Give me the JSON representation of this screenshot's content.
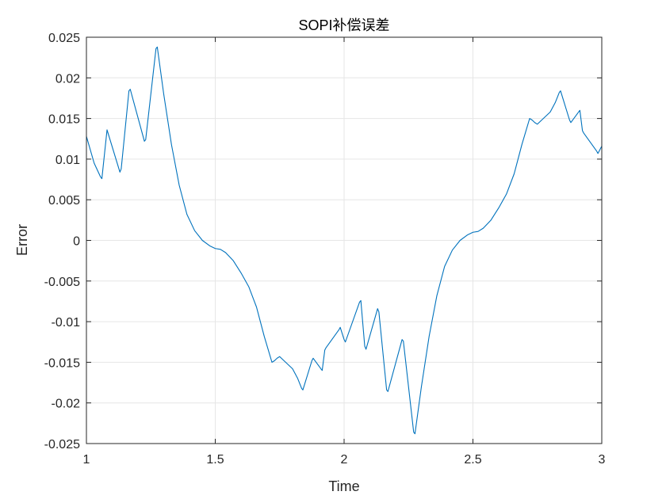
{
  "chart_data": {
    "type": "line",
    "title": "SOPI补偿误差",
    "xlabel": "Time",
    "ylabel": "Error",
    "xlim": [
      1,
      3
    ],
    "ylim": [
      -0.025,
      0.025
    ],
    "grid": true,
    "x_ticks": [
      1,
      1.5,
      2,
      2.5,
      3
    ],
    "x_tick_labels": [
      "1",
      "1.5",
      "2",
      "2.5",
      "3"
    ],
    "y_ticks": [
      0.025,
      0.02,
      0.015,
      0.01,
      0.005,
      0,
      -0.005,
      -0.01,
      -0.015,
      -0.02,
      -0.025
    ],
    "y_tick_labels": [
      "0.025",
      "0.02",
      "0.015",
      "0.01",
      "0.005",
      "0",
      "-0.005",
      "-0.01",
      "-0.015",
      "-0.02",
      "-0.025"
    ],
    "series": [
      {
        "color": "#0072BD",
        "x": [
          1.0,
          1.03,
          1.055,
          1.06,
          1.08,
          1.13,
          1.135,
          1.165,
          1.17,
          1.225,
          1.23,
          1.27,
          1.275,
          1.3,
          1.33,
          1.36,
          1.39,
          1.42,
          1.45,
          1.48,
          1.5,
          1.52,
          1.54,
          1.57,
          1.6,
          1.63,
          1.66,
          1.69,
          1.72,
          1.73,
          1.74,
          1.75,
          1.8,
          1.82,
          1.835,
          1.84,
          1.875,
          1.88,
          1.91,
          1.915,
          1.925,
          1.93,
          1.98,
          1.985,
          2.0,
          2.005,
          2.06,
          2.065,
          2.08,
          2.085,
          2.13,
          2.135,
          2.165,
          2.17,
          2.225,
          2.23,
          2.27,
          2.275,
          2.3,
          2.33,
          2.36,
          2.39,
          2.42,
          2.45,
          2.48,
          2.5,
          2.52,
          2.54,
          2.57,
          2.6,
          2.63,
          2.66,
          2.69,
          2.72,
          2.73,
          2.74,
          2.75,
          2.8,
          2.82,
          2.835,
          2.84,
          2.875,
          2.88,
          2.91,
          2.915,
          2.925,
          2.93,
          2.98,
          2.985,
          3.0
        ],
        "y": [
          0.0128,
          0.0095,
          0.0078,
          0.0076,
          0.0136,
          0.0084,
          0.0088,
          0.0184,
          0.0186,
          0.0122,
          0.0124,
          0.0236,
          0.0238,
          0.018,
          0.0118,
          0.0068,
          0.0032,
          0.0012,
          0.0,
          -0.0007,
          -0.001,
          -0.0011,
          -0.0015,
          -0.0025,
          -0.004,
          -0.0057,
          -0.0082,
          -0.0118,
          -0.015,
          -0.0148,
          -0.0145,
          -0.0143,
          -0.0158,
          -0.017,
          -0.0182,
          -0.0184,
          -0.0148,
          -0.0145,
          -0.0158,
          -0.016,
          -0.0135,
          -0.0132,
          -0.011,
          -0.0107,
          -0.0122,
          -0.0125,
          -0.0076,
          -0.0074,
          -0.013,
          -0.0134,
          -0.0084,
          -0.0088,
          -0.0184,
          -0.0186,
          -0.0122,
          -0.0124,
          -0.0236,
          -0.0238,
          -0.018,
          -0.0118,
          -0.0068,
          -0.0032,
          -0.0012,
          0.0,
          0.0007,
          0.001,
          0.0011,
          0.0015,
          0.0025,
          0.004,
          0.0057,
          0.0082,
          0.0118,
          0.015,
          0.0148,
          0.0145,
          0.0143,
          0.0158,
          0.017,
          0.0182,
          0.0184,
          0.0148,
          0.0145,
          0.0158,
          0.016,
          0.0135,
          0.0132,
          0.011,
          0.0107,
          0.0116
        ]
      }
    ]
  }
}
